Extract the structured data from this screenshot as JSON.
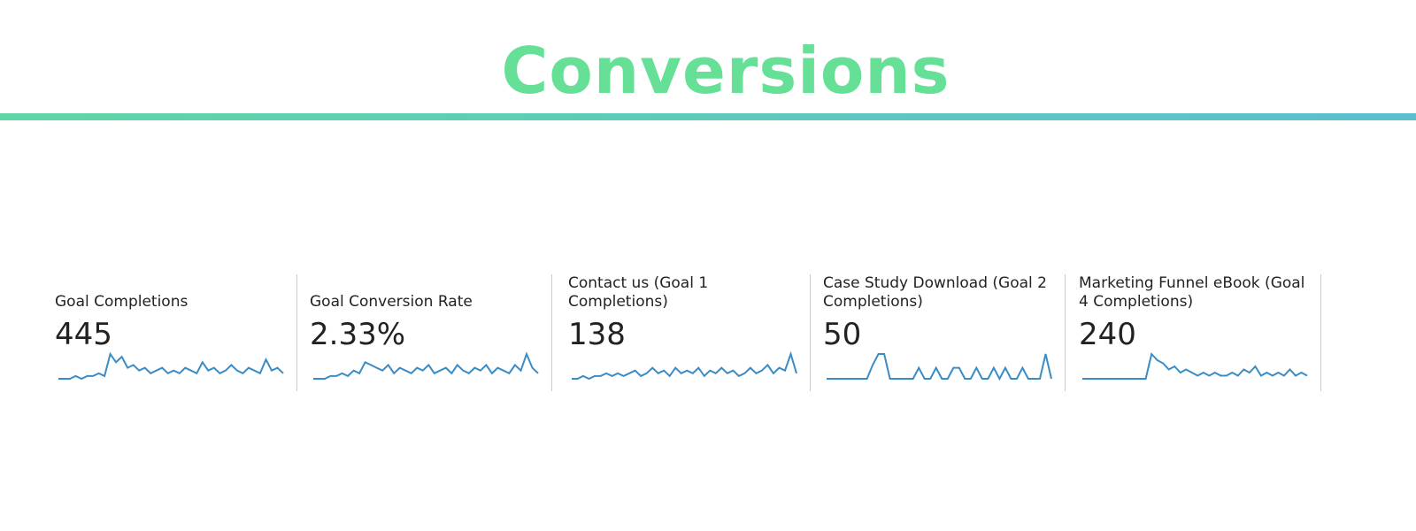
{
  "header": {
    "title": "Conversions"
  },
  "cards": [
    {
      "label": "Goal Completions",
      "value": "445",
      "sparkline": [
        0,
        0,
        0,
        1,
        0,
        1,
        1,
        2,
        1,
        9,
        6,
        8,
        4,
        5,
        3,
        4,
        2,
        3,
        4,
        2,
        3,
        2,
        4,
        3,
        2,
        6,
        3,
        4,
        2,
        3,
        5,
        3,
        2,
        4,
        3,
        2,
        7,
        3,
        4,
        2
      ]
    },
    {
      "label": "Goal Conversion Rate",
      "value": "2.33%",
      "sparkline": [
        0,
        0,
        0,
        1,
        1,
        2,
        1,
        3,
        2,
        6,
        5,
        4,
        3,
        5,
        2,
        4,
        3,
        2,
        4,
        3,
        5,
        2,
        3,
        4,
        2,
        5,
        3,
        2,
        4,
        3,
        5,
        2,
        4,
        3,
        2,
        5,
        3,
        9,
        4,
        2
      ]
    },
    {
      "label": "Contact us (Goal 1 Completions)",
      "value": "138",
      "sparkline": [
        0,
        0,
        1,
        0,
        1,
        1,
        2,
        1,
        2,
        1,
        2,
        3,
        1,
        2,
        4,
        2,
        3,
        1,
        4,
        2,
        3,
        2,
        4,
        1,
        3,
        2,
        4,
        2,
        3,
        1,
        2,
        4,
        2,
        3,
        5,
        2,
        4,
        3,
        9,
        2
      ]
    },
    {
      "label": "Case Study Download (Goal 2 Completions)",
      "value": "50",
      "sparkline": [
        0,
        0,
        0,
        0,
        0,
        0,
        0,
        0,
        5,
        9,
        9,
        0,
        0,
        0,
        0,
        0,
        4,
        0,
        0,
        4,
        0,
        0,
        4,
        4,
        0,
        0,
        4,
        0,
        0,
        4,
        0,
        4,
        0,
        0,
        4,
        0,
        0,
        0,
        9,
        0
      ]
    },
    {
      "label": "Marketing Funnel eBook (Goal 4 Completions)",
      "value": "240",
      "sparkline": [
        0,
        0,
        0,
        0,
        0,
        0,
        0,
        0,
        0,
        0,
        0,
        0,
        8,
        6,
        5,
        3,
        4,
        2,
        3,
        2,
        1,
        2,
        1,
        2,
        1,
        1,
        2,
        1,
        3,
        2,
        4,
        1,
        2,
        1,
        2,
        1,
        3,
        1,
        2,
        1
      ]
    }
  ]
}
